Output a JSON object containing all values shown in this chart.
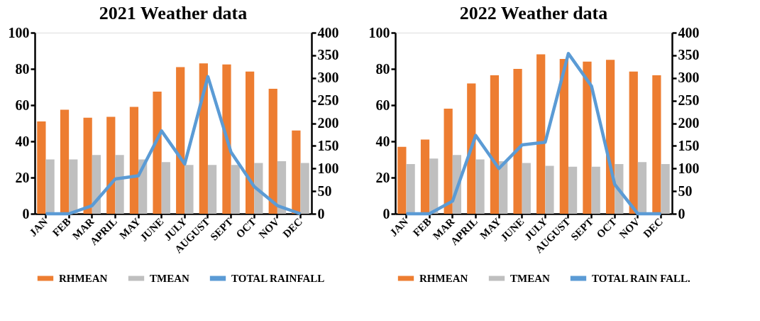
{
  "chart_data": [
    {
      "type": "bar",
      "title": "2021 Weather data",
      "categories": [
        "JAN",
        "FEB",
        "MAR",
        "APRIL",
        "MAY",
        "JUNE",
        "JULY",
        "AUGUST",
        "SEPT",
        "OCT",
        "NOV",
        "DEC"
      ],
      "series": [
        {
          "name": "RHMEAN",
          "color": "#ed7d31",
          "values": [
            51,
            57.5,
            53,
            53.5,
            59,
            67.5,
            81,
            83,
            82.5,
            78.5,
            69,
            46
          ]
        },
        {
          "name": "TMEAN",
          "color": "#bfbfbf",
          "values": [
            30,
            30,
            32.5,
            32.5,
            30,
            28.5,
            27,
            27,
            27,
            28,
            29,
            28
          ]
        },
        {
          "name": "TOTAL RAINFALL",
          "color": "#5b9bd5",
          "type": "line",
          "axis": "y2",
          "values": [
            0,
            0,
            18,
            77,
            84,
            183,
            110,
            303,
            136,
            60,
            18,
            0
          ]
        }
      ],
      "ylim": [
        0,
        100
      ],
      "yticks": [
        0,
        20,
        40,
        60,
        80,
        100
      ],
      "y2lim": [
        0,
        400
      ],
      "y2ticks": [
        0,
        50,
        100,
        150,
        200,
        250,
        300,
        350,
        400
      ],
      "grid": false,
      "legend": "bottom"
    },
    {
      "type": "bar",
      "title": "2022 Weather data",
      "categories": [
        "JAN",
        "FEB",
        "MAR",
        "APRIL",
        "MAY",
        "JUNE",
        "JULY",
        "AUGUST",
        "SEPT",
        "OCT",
        "NOV",
        "DEC"
      ],
      "series": [
        {
          "name": "RHMEAN",
          "color": "#ed7d31",
          "values": [
            37,
            41,
            58,
            72,
            76.5,
            80,
            88,
            85.5,
            84,
            85,
            78.5,
            76.5
          ]
        },
        {
          "name": "TMEAN",
          "color": "#bfbfbf",
          "values": [
            27.5,
            30.5,
            32.5,
            30,
            29,
            28,
            26.5,
            26,
            26,
            27.5,
            28.5,
            27.5
          ]
        },
        {
          "name": "TOTAL RAIN FALL.",
          "color": "#5b9bd5",
          "type": "line",
          "axis": "y2",
          "values": [
            0,
            0,
            28,
            173,
            100,
            152,
            158,
            354,
            282,
            65,
            0,
            0
          ]
        }
      ],
      "ylim": [
        0,
        100
      ],
      "yticks": [
        0,
        20,
        40,
        60,
        80,
        100
      ],
      "y2lim": [
        0,
        400
      ],
      "y2ticks": [
        0,
        50,
        100,
        150,
        200,
        250,
        300,
        350,
        400
      ],
      "grid": false,
      "legend": "bottom"
    }
  ]
}
